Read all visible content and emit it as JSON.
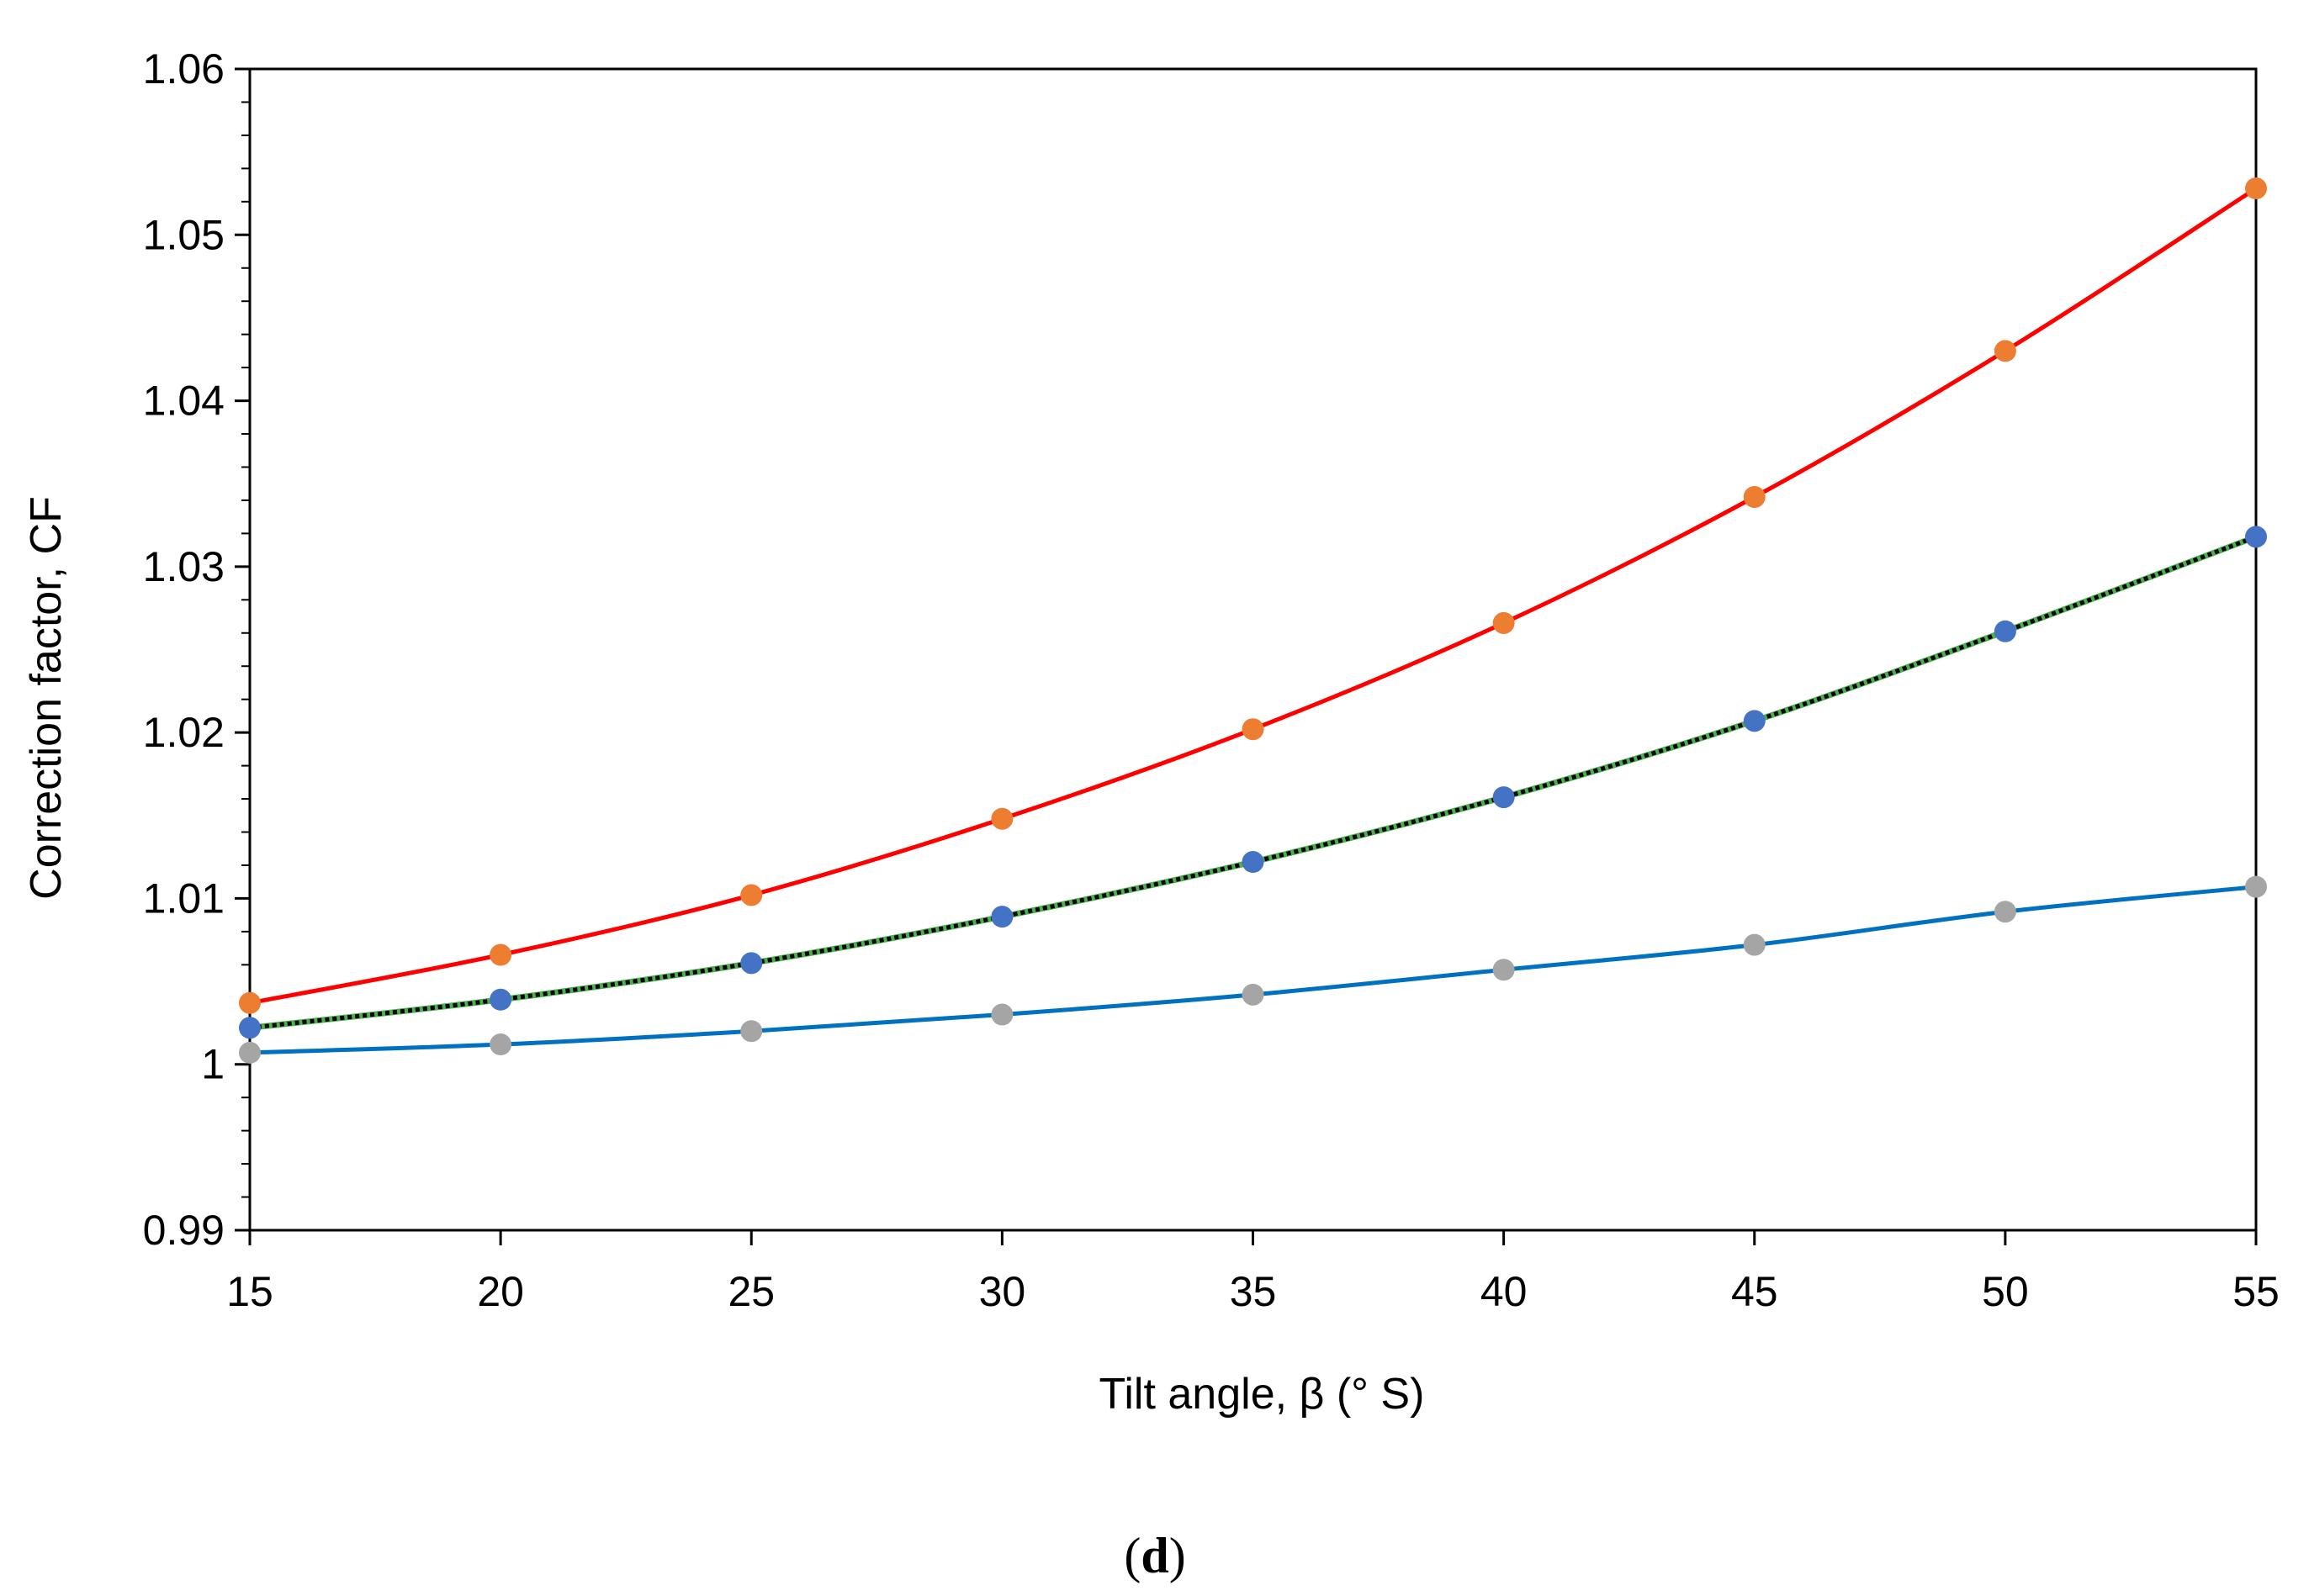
{
  "chart_data": {
    "type": "line",
    "xlabel": "Tilt angle, β (° S)",
    "ylabel": "Correction factor, CF",
    "panel_label_parts": [
      "(",
      "d",
      ")"
    ],
    "xlim": [
      15,
      55
    ],
    "ylim": [
      0.99,
      1.06
    ],
    "x": [
      15,
      20,
      25,
      30,
      35,
      40,
      45,
      50,
      55
    ],
    "x_tick_labels": [
      "15",
      "20",
      "25",
      "30",
      "35",
      "40",
      "45",
      "50",
      "55"
    ],
    "y_ticks": [
      0.99,
      1,
      1.01,
      1.02,
      1.03,
      1.04,
      1.05,
      1.06
    ],
    "y_tick_labels": [
      "0.99",
      "1",
      "1.01",
      "1.02",
      "1.03",
      "1.04",
      "1.05",
      "1.06"
    ],
    "y_minor_step": 0.002,
    "grid": false,
    "legend": "none",
    "series": [
      {
        "key": "upper",
        "values": [
          1.0037,
          1.0066,
          1.0102,
          1.0148,
          1.0202,
          1.0266,
          1.0342,
          1.043,
          1.0528
        ],
        "line_color": "#ff0000",
        "marker_color": "#ed7d31"
      },
      {
        "key": "middle",
        "values": [
          1.0022,
          1.0039,
          1.0061,
          1.0089,
          1.0122,
          1.0161,
          1.0207,
          1.0261,
          1.0318
        ],
        "line_color": "#000000",
        "dotted_overlay_color": "#4caf50",
        "marker_color": "#4472c4"
      },
      {
        "key": "lower",
        "values": [
          1.0007,
          1.0012,
          1.002,
          1.003,
          1.0042,
          1.0057,
          1.0072,
          1.0092,
          1.0107
        ],
        "line_color": "#0070c0",
        "marker_color": "#a5a5a5"
      }
    ]
  }
}
